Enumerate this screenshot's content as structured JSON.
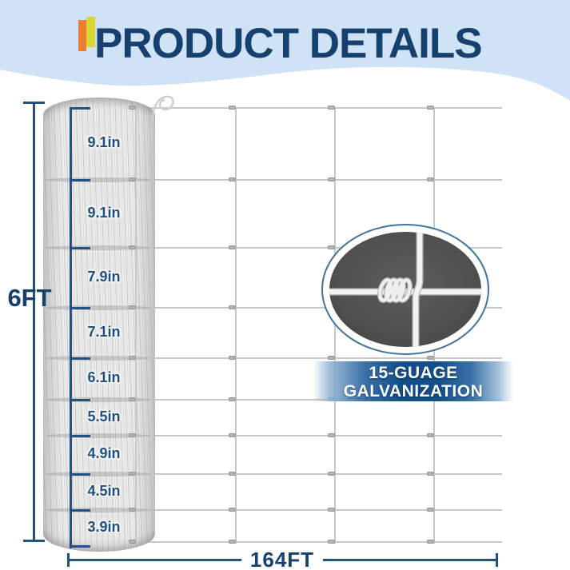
{
  "header": {
    "title": "PRODUCT DETAILS"
  },
  "diagram": {
    "roll_height_label": "6FT",
    "roll_length_label": "164FT",
    "mesh_spacing_labels": [
      "9.1in",
      "9.1in",
      "7.9in",
      "7.1in",
      "6.1in",
      "5.5in",
      "4.9in",
      "4.5in",
      "3.9in"
    ],
    "mesh_columns": 4,
    "mesh_rows": 10,
    "badge": {
      "line1": "15-GUAGE",
      "line2": "GALVANIZATION"
    }
  },
  "colors": {
    "header_bg": "#cfe2f6",
    "title_navy": "#16406d",
    "dimension_navy": "#24527f",
    "accent_orange": "#ee7d2f",
    "accent_yellow": "#d9d831",
    "wire_gray": "#c8c8c8",
    "badge_blue_dark": "#134e88",
    "inset_dark": "#4f4f4f"
  }
}
